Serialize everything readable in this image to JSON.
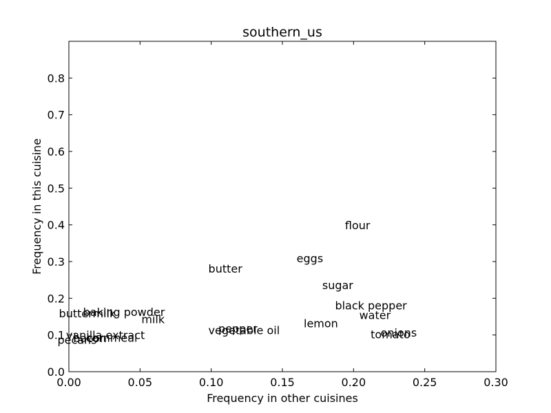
{
  "chart_data": {
    "type": "scatter",
    "title": "southern_us",
    "xlabel": "Frequency in other cuisines",
    "ylabel": "Frequency in this cuisine",
    "xlim": [
      0.0,
      0.3
    ],
    "ylim": [
      0.0,
      0.9
    ],
    "xticks": [
      0.0,
      0.05,
      0.1,
      0.15,
      0.2,
      0.25,
      0.3
    ],
    "xtick_labels": [
      "0.00",
      "0.05",
      "0.10",
      "0.15",
      "0.20",
      "0.25",
      "0.30"
    ],
    "yticks": [
      0.0,
      0.1,
      0.2,
      0.3,
      0.4,
      0.5,
      0.6,
      0.7,
      0.8
    ],
    "ytick_labels": [
      "0.0",
      "0.1",
      "0.2",
      "0.3",
      "0.4",
      "0.5",
      "0.6",
      "0.7",
      "0.8"
    ],
    "grid": false,
    "points": [
      {
        "label": "flour",
        "x": 0.194,
        "y": 0.388
      },
      {
        "label": "eggs",
        "x": 0.16,
        "y": 0.298
      },
      {
        "label": "butter",
        "x": 0.098,
        "y": 0.27
      },
      {
        "label": "sugar",
        "x": 0.178,
        "y": 0.225
      },
      {
        "label": "black pepper",
        "x": 0.187,
        "y": 0.17
      },
      {
        "label": "water",
        "x": 0.204,
        "y": 0.143
      },
      {
        "label": "lemon",
        "x": 0.165,
        "y": 0.121
      },
      {
        "label": "onions",
        "x": 0.219,
        "y": 0.096
      },
      {
        "label": "tomato",
        "x": 0.212,
        "y": 0.091
      },
      {
        "label": "baking powder",
        "x": 0.01,
        "y": 0.152
      },
      {
        "label": "buttermilk",
        "x": -0.007,
        "y": 0.148
      },
      {
        "label": "milk",
        "x": 0.051,
        "y": 0.132
      },
      {
        "label": "pepper",
        "x": 0.105,
        "y": 0.107
      },
      {
        "label": "vegetable oil",
        "x": 0.098,
        "y": 0.102
      },
      {
        "label": "vanilla extract",
        "x": -0.002,
        "y": 0.089
      },
      {
        "label": "bacon",
        "x": 0.003,
        "y": 0.081
      },
      {
        "label": "pecans",
        "x": -0.008,
        "y": 0.076
      },
      {
        "label": "cornmeal",
        "x": 0.012,
        "y": 0.082
      }
    ]
  }
}
